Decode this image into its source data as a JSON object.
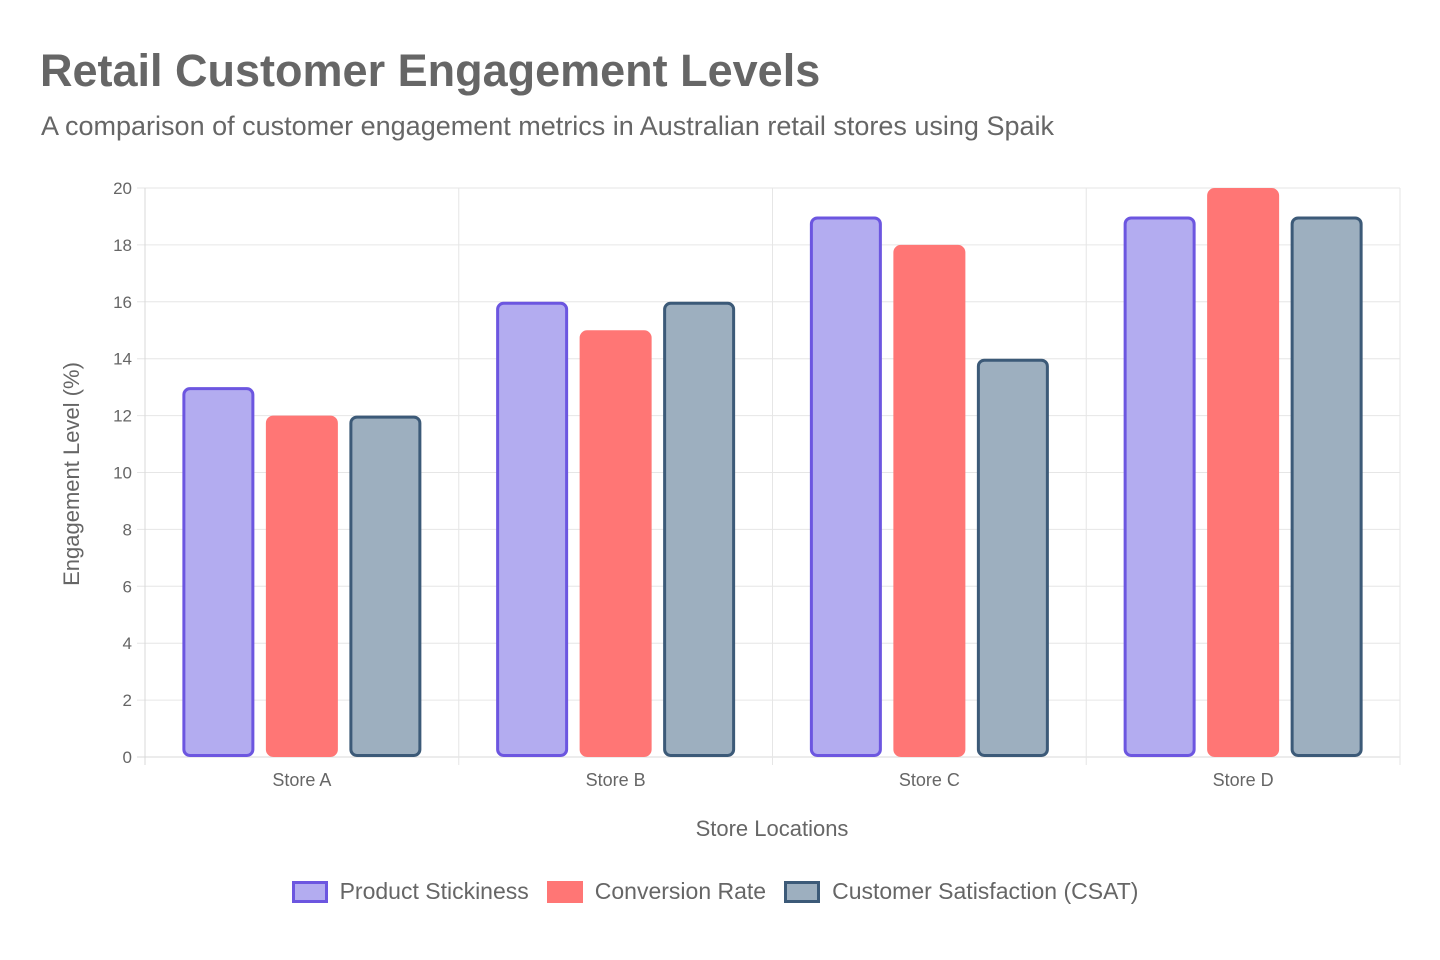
{
  "header": {
    "title": "Retail Customer Engagement Levels",
    "subtitle": "A comparison of customer engagement metrics in Australian retail stores using Spaik"
  },
  "chart_data": {
    "type": "bar",
    "title": "Retail Customer Engagement Levels",
    "subtitle": "A comparison of customer engagement metrics in Australian retail stores using Spaik",
    "xlabel": "Store Locations",
    "ylabel": "Engagement Level (%)",
    "categories": [
      "Store A",
      "Store B",
      "Store C",
      "Store D"
    ],
    "ylim": [
      0,
      20
    ],
    "yticks": [
      0,
      2,
      4,
      6,
      8,
      10,
      12,
      14,
      16,
      18,
      20
    ],
    "grid": true,
    "legend_position": "bottom",
    "series": [
      {
        "name": "Product Stickiness",
        "values": [
          13,
          16,
          19,
          19
        ],
        "fill": "#b3acf0",
        "border": "#6c56e0"
      },
      {
        "name": "Conversion Rate",
        "values": [
          12,
          15,
          18,
          20
        ],
        "fill": "#ff7675",
        "border": "#ff7675"
      },
      {
        "name": "Customer Satisfaction (CSAT)",
        "values": [
          12,
          16,
          14,
          19
        ],
        "fill": "#9dafbf",
        "border": "#3c5a78"
      }
    ]
  }
}
